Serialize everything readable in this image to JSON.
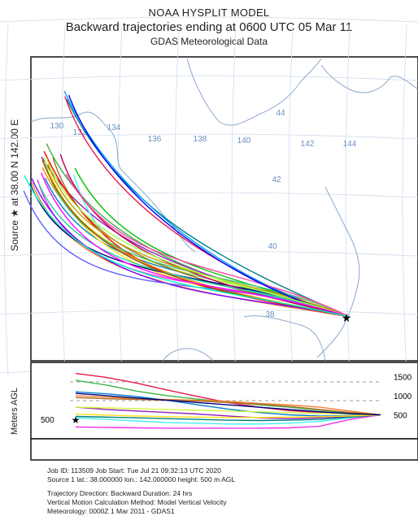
{
  "titles": {
    "model": "NOAA HYSPLIT MODEL",
    "subtitle": "Backward trajectories ending at 0600 UTC 05 Mar 11",
    "data_source": "GDAS Meteorological Data"
  },
  "y_axis_source": "Source ★ at  38.00 N  142.00 E",
  "y_axis_height": "Meters AGL",
  "map_labels": {
    "lon_labels": [
      "130",
      "132",
      "134",
      "136",
      "138",
      "140",
      "142",
      "144"
    ],
    "lat_labels": [
      "44",
      "42",
      "40",
      "38"
    ]
  },
  "height_panel": {
    "source_height_label": "500",
    "right_ticks": [
      "1500",
      "1000",
      "500"
    ]
  },
  "footer": {
    "line1": "Job ID: 113509                              Job Start: Tue Jul 21 09:32:13 UTC 2020",
    "line2": "Source 1     lat.: 38.000000     lon.: 142.000000     height: 500 m AGL",
    "line3": "Trajectory Direction: Backward      Duration: 24 hrs",
    "line4": "Vertical Motion Calculation Method:      Model Vertical Velocity",
    "line5": "Meteorology: 0000Z  1 Mar 2011 - GDAS1"
  },
  "chart_data": {
    "type": "line",
    "title": "Backward trajectories ending at 0600 UTC 05 Mar 11",
    "source": {
      "lat": 38.0,
      "lon": 142.0,
      "height_m": 500
    },
    "duration_hours": 24,
    "colors": [
      "#e6194b",
      "#3cb44b",
      "#0082c8",
      "#f58231",
      "#911eb4",
      "#46f0f0",
      "#f032e6",
      "#d2f53c",
      "#008080",
      "#aa6e28",
      "#ffe119",
      "#000080",
      "#ff0000",
      "#00c000",
      "#8000ff",
      "#ff8c00",
      "#00a0ff",
      "#c00060",
      "#40c080",
      "#6060ff",
      "#c0a000",
      "#ff40a0",
      "#20d0a0",
      "#a05000",
      "#0000ff",
      "#a0ff40",
      "#ff00ff",
      "#00ffc0"
    ],
    "trajectories": {
      "count": 28,
      "start_points": [
        {
          "lon": 132.0,
          "lat": 45.5
        },
        {
          "lon": 131.6,
          "lat": 43.7
        },
        {
          "lon": 131.2,
          "lat": 43.0
        },
        {
          "lon": 130.8,
          "lat": 42.6
        },
        {
          "lon": 131.4,
          "lat": 43.5
        },
        {
          "lon": 132.2,
          "lat": 43.0
        },
        {
          "lon": 131.0,
          "lat": 42.8
        },
        {
          "lon": 131.5,
          "lat": 43.2
        }
      ],
      "end_point": {
        "lon": 142.0,
        "lat": 38.0
      }
    },
    "height_series_m": [
      [
        500,
        520,
        560,
        610,
        700,
        820,
        980,
        1150,
        1330,
        1480,
        1580
      ],
      [
        500,
        550,
        620,
        700,
        760,
        830,
        910,
        1000,
        1120,
        1280,
        1400
      ],
      [
        500,
        480,
        470,
        500,
        560,
        650,
        760,
        880,
        980,
        1050,
        1100
      ],
      [
        500,
        600,
        700,
        760,
        800,
        850,
        880,
        900,
        920,
        960,
        1000
      ],
      [
        500,
        460,
        420,
        400,
        420,
        470,
        520,
        560,
        600,
        640,
        700
      ],
      [
        500,
        420,
        330,
        280,
        260,
        260,
        280,
        300,
        340,
        380,
        420
      ],
      [
        500,
        380,
        200,
        160,
        150,
        150,
        150,
        150,
        160,
        170,
        180
      ],
      [
        500,
        520,
        540,
        560,
        580,
        600,
        620,
        640,
        660,
        680,
        700
      ],
      [
        500,
        440,
        380,
        360,
        350,
        360,
        380,
        400,
        420,
        440,
        460
      ],
      [
        500,
        560,
        640,
        720,
        780,
        820,
        860,
        880,
        900,
        920,
        950
      ],
      [
        500,
        470,
        450,
        440,
        430,
        430,
        440,
        450,
        470,
        490,
        520
      ],
      [
        500,
        530,
        580,
        640,
        700,
        760,
        820,
        880,
        940,
        1000,
        1060
      ]
    ],
    "ylim_height": [
      0,
      1700
    ]
  }
}
